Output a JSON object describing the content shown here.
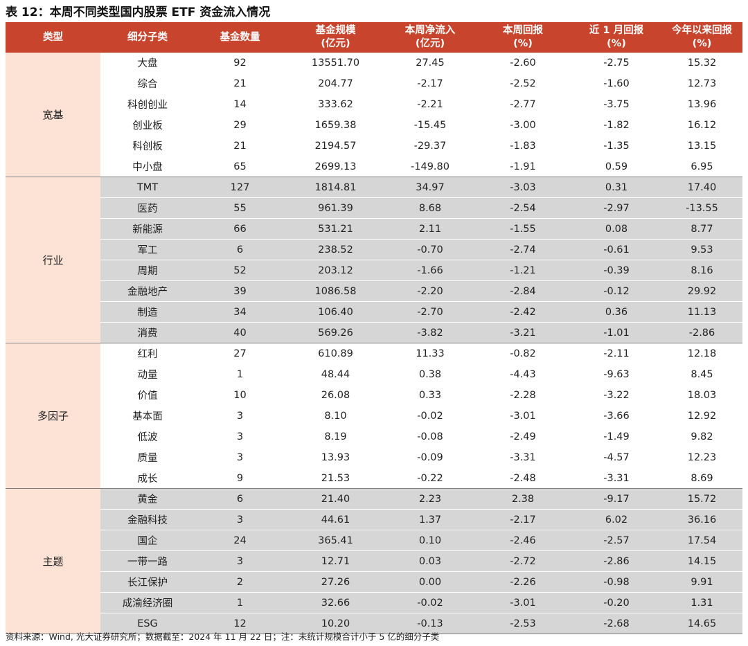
{
  "title": "表 12：本周不同类型国内股票 ETF 资金流入情况",
  "header": {
    "type": "类型",
    "sub": "细分子类",
    "count": "基金数量",
    "scale": [
      "基金规模",
      "(亿元)"
    ],
    "flow": [
      "本周净流入",
      "(亿元)"
    ],
    "week": [
      "本周回报",
      "(%)"
    ],
    "month": [
      "近 1 月回报",
      "(%)"
    ],
    "ytd": [
      "今年以来回报",
      "(%)"
    ]
  },
  "groups": [
    {
      "name": "宽基",
      "shaded": false,
      "rows": [
        [
          "大盘",
          "92",
          "13551.70",
          "27.45",
          "-2.60",
          "-2.75",
          "15.32"
        ],
        [
          "综合",
          "21",
          "204.77",
          "-2.17",
          "-2.52",
          "-1.60",
          "12.73"
        ],
        [
          "科创创业",
          "14",
          "333.62",
          "-2.21",
          "-2.77",
          "-3.75",
          "13.96"
        ],
        [
          "创业板",
          "29",
          "1659.38",
          "-15.45",
          "-3.00",
          "-1.82",
          "16.12"
        ],
        [
          "科创板",
          "21",
          "2194.57",
          "-29.37",
          "-1.83",
          "-1.35",
          "13.15"
        ],
        [
          "中小盘",
          "65",
          "2699.13",
          "-149.80",
          "-1.91",
          "0.59",
          "6.95"
        ]
      ]
    },
    {
      "name": "行业",
      "shaded": true,
      "rows": [
        [
          "TMT",
          "127",
          "1814.81",
          "34.97",
          "-3.03",
          "0.31",
          "17.40"
        ],
        [
          "医药",
          "55",
          "961.39",
          "8.68",
          "-2.54",
          "-2.97",
          "-13.55"
        ],
        [
          "新能源",
          "66",
          "531.21",
          "2.11",
          "-1.55",
          "0.08",
          "8.77"
        ],
        [
          "军工",
          "6",
          "238.52",
          "-0.70",
          "-2.74",
          "-0.61",
          "9.53"
        ],
        [
          "周期",
          "52",
          "203.12",
          "-1.66",
          "-1.21",
          "-0.39",
          "8.16"
        ],
        [
          "金融地产",
          "39",
          "1086.58",
          "-2.20",
          "-2.84",
          "-0.12",
          "29.92"
        ],
        [
          "制造",
          "34",
          "106.40",
          "-2.70",
          "-2.42",
          "0.36",
          "11.13"
        ],
        [
          "消费",
          "40",
          "569.26",
          "-3.82",
          "-3.21",
          "-1.01",
          "-2.86"
        ]
      ]
    },
    {
      "name": "多因子",
      "shaded": false,
      "rows": [
        [
          "红利",
          "27",
          "610.89",
          "11.33",
          "-0.82",
          "-2.11",
          "12.18"
        ],
        [
          "动量",
          "1",
          "48.44",
          "0.38",
          "-4.43",
          "-9.63",
          "8.45"
        ],
        [
          "价值",
          "10",
          "26.08",
          "0.33",
          "-2.28",
          "-3.22",
          "18.03"
        ],
        [
          "基本面",
          "3",
          "8.10",
          "-0.02",
          "-3.01",
          "-3.66",
          "12.92"
        ],
        [
          "低波",
          "3",
          "8.19",
          "-0.08",
          "-2.49",
          "-1.49",
          "9.82"
        ],
        [
          "质量",
          "3",
          "13.93",
          "-0.09",
          "-3.31",
          "-4.57",
          "12.23"
        ],
        [
          "成长",
          "9",
          "21.53",
          "-0.22",
          "-2.48",
          "-3.31",
          "8.69"
        ]
      ]
    },
    {
      "name": "主题",
      "shaded": true,
      "rows": [
        [
          "黄金",
          "6",
          "21.40",
          "2.23",
          "2.38",
          "-9.17",
          "15.72"
        ],
        [
          "金融科技",
          "3",
          "44.61",
          "1.37",
          "-2.17",
          "6.02",
          "36.16"
        ],
        [
          "国企",
          "24",
          "365.41",
          "0.10",
          "-2.46",
          "-2.57",
          "17.54"
        ],
        [
          "一带一路",
          "3",
          "12.71",
          "0.03",
          "-2.72",
          "-2.86",
          "14.15"
        ],
        [
          "长江保护",
          "2",
          "27.26",
          "0.00",
          "-2.26",
          "-0.98",
          "9.91"
        ],
        [
          "成渝经济圈",
          "1",
          "32.66",
          "-0.02",
          "-3.01",
          "-0.20",
          "1.31"
        ],
        [
          "ESG",
          "12",
          "10.20",
          "-0.13",
          "-2.53",
          "-2.68",
          "14.65"
        ]
      ]
    }
  ],
  "note": "资料来源：Wind, 光大证券研究所；数据截至：2024 年 11 月 22 日；注：未统计规模合计小于 5 亿的细分子类"
}
